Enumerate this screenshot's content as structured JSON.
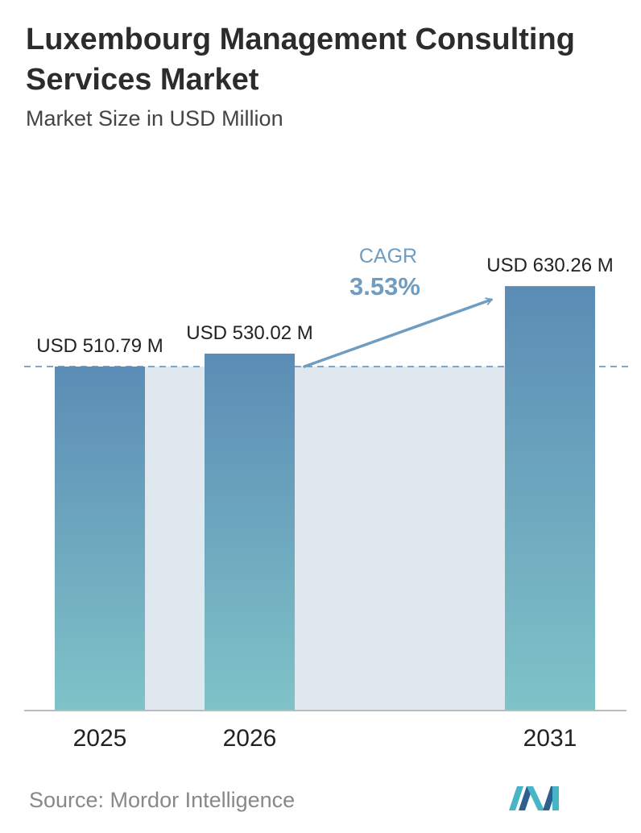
{
  "header": {
    "title": "Luxembourg Management Consulting Services Market",
    "subtitle": "Market Size in USD Million"
  },
  "chart_data": {
    "type": "bar",
    "categories": [
      "2025",
      "2026",
      "2031"
    ],
    "values": [
      510.79,
      530.02,
      630.26
    ],
    "value_labels": [
      "USD 510.79 M",
      "USD 530.02 M",
      "USD 630.26 M"
    ],
    "cagr_label": "CAGR",
    "cagr_value": "3.53%",
    "reference_line": 510.79,
    "grid": false,
    "legend": "none"
  },
  "footer": {
    "source": "Source:  Mordor Intelligence",
    "logo": "mordor-intelligence-logo"
  },
  "colors": {
    "bar_top": "#5b8cb5",
    "bar_bottom": "#7fc3c8",
    "shade": "#dfe7ef",
    "arrow": "#6f9dc2",
    "cagr_text": "#6f9dc2",
    "logo_dark": "#2e5f8f",
    "logo_light": "#47b5c6"
  }
}
